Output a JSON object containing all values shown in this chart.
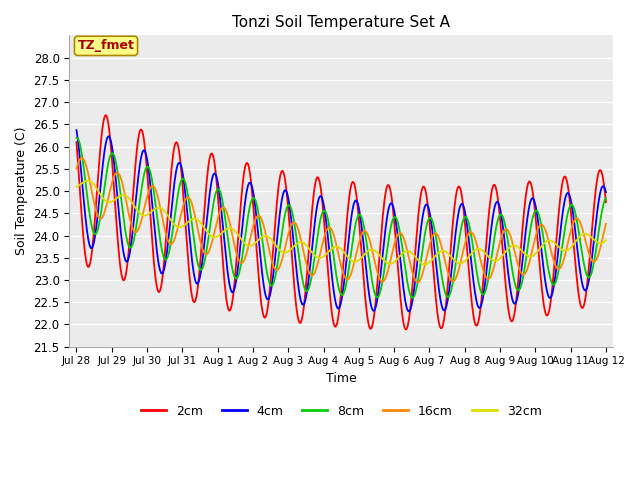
{
  "title": "Tonzi Soil Temperature Set A",
  "xlabel": "Time",
  "ylabel": "Soil Temperature (C)",
  "ylim": [
    21.5,
    28.5
  ],
  "tick_labels": [
    "Jul 28",
    "Jul 29",
    "Jul 30",
    "Jul 31",
    "Aug 1",
    "Aug 2",
    "Aug 3",
    "Aug 4",
    "Aug 5",
    "Aug 6",
    "Aug 7",
    "Aug 8",
    "Aug 9",
    "Aug 10",
    "Aug 11",
    "Aug 12"
  ],
  "legend_labels": [
    "2cm",
    "4cm",
    "8cm",
    "16cm",
    "32cm"
  ],
  "legend_colors": [
    "#ff0000",
    "#0000ff",
    "#00cc00",
    "#ff8800",
    "#dddd00"
  ],
  "annotation_text": "TZ_fmet",
  "annotation_color": "#aa0000",
  "annotation_bg": "#ffff88",
  "background_color": "#ebebeb",
  "yticks": [
    21.5,
    22.0,
    22.5,
    23.0,
    23.5,
    24.0,
    24.5,
    25.0,
    25.5,
    26.0,
    26.5,
    27.0,
    27.5,
    28.0
  ],
  "n_points": 720
}
